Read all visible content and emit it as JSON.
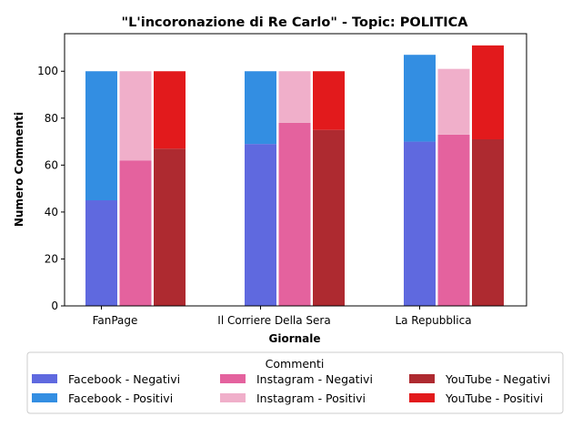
{
  "chart_data": {
    "type": "bar",
    "title": "\"L'incoronazione di Re Carlo\" - Topic: POLITICA",
    "xlabel": "Giornale",
    "ylabel": "Numero Commenti",
    "categories": [
      "FanPage",
      "Il Corriere Della Sera",
      "La Repubblica"
    ],
    "ylim": [
      0,
      116
    ],
    "yticks": [
      0,
      20,
      40,
      60,
      80,
      100
    ],
    "grid": false,
    "stacked_pairs": true,
    "series": [
      {
        "name": "Facebook - Negativi",
        "platform": "Facebook",
        "kind": "neg",
        "color": "#5F69DF",
        "values": [
          45,
          69,
          70
        ]
      },
      {
        "name": "Facebook - Positivi",
        "platform": "Facebook",
        "kind": "pos",
        "color": "#338EE2",
        "values": [
          55,
          31,
          37
        ]
      },
      {
        "name": "Instagram - Negativi",
        "platform": "Instagram",
        "kind": "neg",
        "color": "#E4629E",
        "values": [
          62,
          78,
          73
        ]
      },
      {
        "name": "Instagram - Positivi",
        "platform": "Instagram",
        "kind": "pos",
        "color": "#F0AFCA",
        "values": [
          38,
          22,
          28
        ]
      },
      {
        "name": "YouTube - Negativi",
        "platform": "YouTube",
        "kind": "neg",
        "color": "#AE2A30",
        "values": [
          67,
          75,
          71
        ]
      },
      {
        "name": "YouTube - Positivi",
        "platform": "YouTube",
        "kind": "pos",
        "color": "#E21A1C",
        "values": [
          33,
          25,
          40
        ]
      }
    ],
    "legend": {
      "title": "Commenti",
      "placement": "bottom-center",
      "columns": [
        [
          "Facebook - Negativi",
          "Facebook - Positivi"
        ],
        [
          "Instagram - Negativi",
          "Instagram - Positivi"
        ],
        [
          "YouTube - Negativi",
          "YouTube - Positivi"
        ]
      ]
    }
  }
}
